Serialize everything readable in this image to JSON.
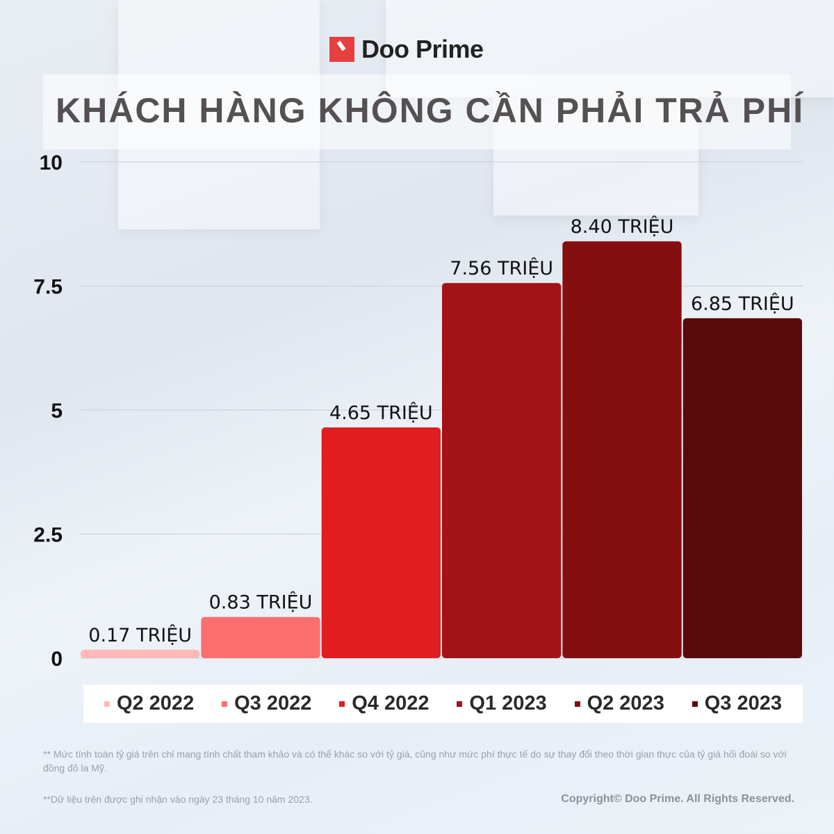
{
  "brand": "Doo Prime",
  "chart_data": {
    "type": "bar",
    "title": "KHÁCH HÀNG KHÔNG CẦN PHẢI TRẢ PHÍ",
    "categories": [
      "Q2 2022",
      "Q3 2022",
      "Q4 2022",
      "Q1 2023",
      "Q2 2023",
      "Q3 2023"
    ],
    "values": [
      0.17,
      0.83,
      4.65,
      7.56,
      8.4,
      6.85
    ],
    "data_labels": [
      "0.17 TRIỆU",
      "0.83 TRIỆU",
      "4.65 TRIỆU",
      "7.56 TRIỆU",
      "8.40 TRIỆU",
      "6.85 TRIỆU"
    ],
    "colors": [
      "#ffb9b9",
      "#ff6e6e",
      "#e11d1f",
      "#a31214",
      "#850e10",
      "#5a0a0b"
    ],
    "ylim": [
      0,
      10
    ],
    "yticks": [
      0,
      2.5,
      5,
      7.5,
      10
    ],
    "ytick_labels": [
      "0",
      "2.5",
      "5",
      "7.5",
      "10"
    ],
    "grid": true,
    "legend": "bottom"
  },
  "footnotes": {
    "note1": "** Mức tính toán tỷ giá trên chỉ mang tính chất tham khảo và có thể khác so với tỷ giá, cũng như mức phí thực tế do sự thay đổi theo thời gian thực của tỷ giá hối đoái so với đồng đô la Mỹ.",
    "note2": "**Dữ liệu trên được ghi nhận vào ngày 23 tháng 10 năm 2023.",
    "copyright": "Copyright© Doo Prime. All Rights Reserved."
  }
}
